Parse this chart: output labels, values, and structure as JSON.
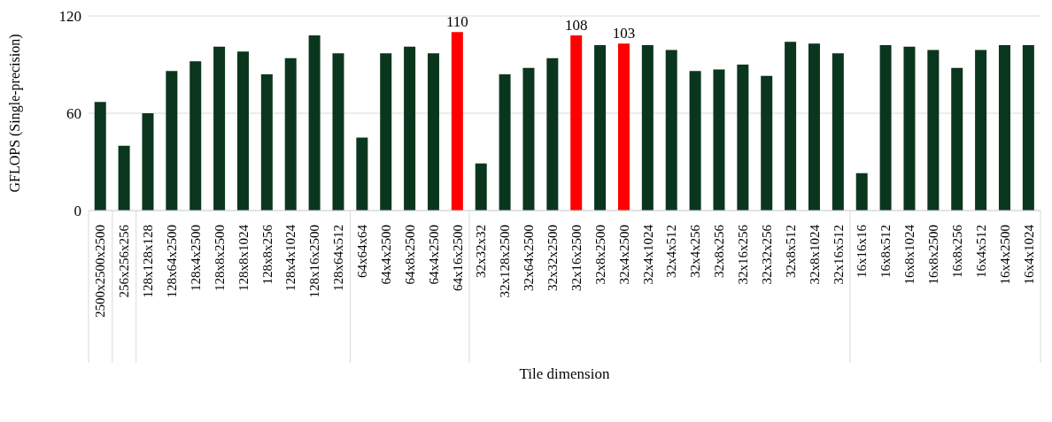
{
  "chart_data": {
    "type": "bar",
    "xlabel": "Tile dimension",
    "ylabel": "GFLOPS (Single-precision)",
    "categories": [
      "2500x2500x2500",
      "256x256x256",
      "128x128x128",
      "128x64x2500",
      "128x4x2500",
      "128x8x2500",
      "128x8x1024",
      "128x8x256",
      "128x4x1024",
      "128x16x2500",
      "128x64x512",
      "64x64x64",
      "64x4x2500",
      "64x8x2500",
      "64x4x2500",
      "64x16x2500",
      "32x32x32",
      "32x128x2500",
      "32x64x2500",
      "32x32x2500",
      "32x16x2500",
      "32x8x2500",
      "32x4x2500",
      "32x4x1024",
      "32x4x512",
      "32x4x256",
      "32x8x256",
      "32x16x256",
      "32x32x256",
      "32x8x512",
      "32x8x1024",
      "32x16x512",
      "16x16x16",
      "16x8x512",
      "16x8x1024",
      "16x8x2500",
      "16x8x256",
      "16x4x512",
      "16x4x2500",
      "16x4x1024"
    ],
    "values": [
      67,
      40,
      60,
      86,
      92,
      101,
      98,
      84,
      94,
      108,
      97,
      45,
      97,
      101,
      97,
      110,
      29,
      84,
      88,
      94,
      108,
      102,
      103,
      102,
      99,
      86,
      87,
      90,
      83,
      104,
      103,
      97,
      23,
      102,
      101,
      99,
      88,
      99,
      102,
      102
    ],
    "colors": [
      "#0b361e",
      "#0b361e",
      "#0b361e",
      "#0b361e",
      "#0b361e",
      "#0b361e",
      "#0b361e",
      "#0b361e",
      "#0b361e",
      "#0b361e",
      "#0b361e",
      "#0b361e",
      "#0b361e",
      "#0b361e",
      "#0b361e",
      "#ff0000",
      "#0b361e",
      "#0b361e",
      "#0b361e",
      "#0b361e",
      "#ff0000",
      "#0b361e",
      "#ff0000",
      "#0b361e",
      "#0b361e",
      "#0b361e",
      "#0b361e",
      "#0b361e",
      "#0b361e",
      "#0b361e",
      "#0b361e",
      "#0b361e",
      "#0b361e",
      "#0b361e",
      "#0b361e",
      "#0b361e",
      "#0b361e",
      "#0b361e",
      "#0b361e",
      "#0b361e"
    ],
    "value_labels": [
      null,
      null,
      null,
      null,
      null,
      null,
      null,
      null,
      null,
      null,
      null,
      null,
      null,
      null,
      null,
      "110",
      null,
      null,
      null,
      null,
      "108",
      null,
      "103",
      null,
      null,
      null,
      null,
      null,
      null,
      null,
      null,
      null,
      null,
      null,
      null,
      null,
      null,
      null,
      null,
      null
    ],
    "ylim": [
      0,
      120
    ],
    "yticks": [
      0,
      60,
      120
    ],
    "grid": "y"
  }
}
